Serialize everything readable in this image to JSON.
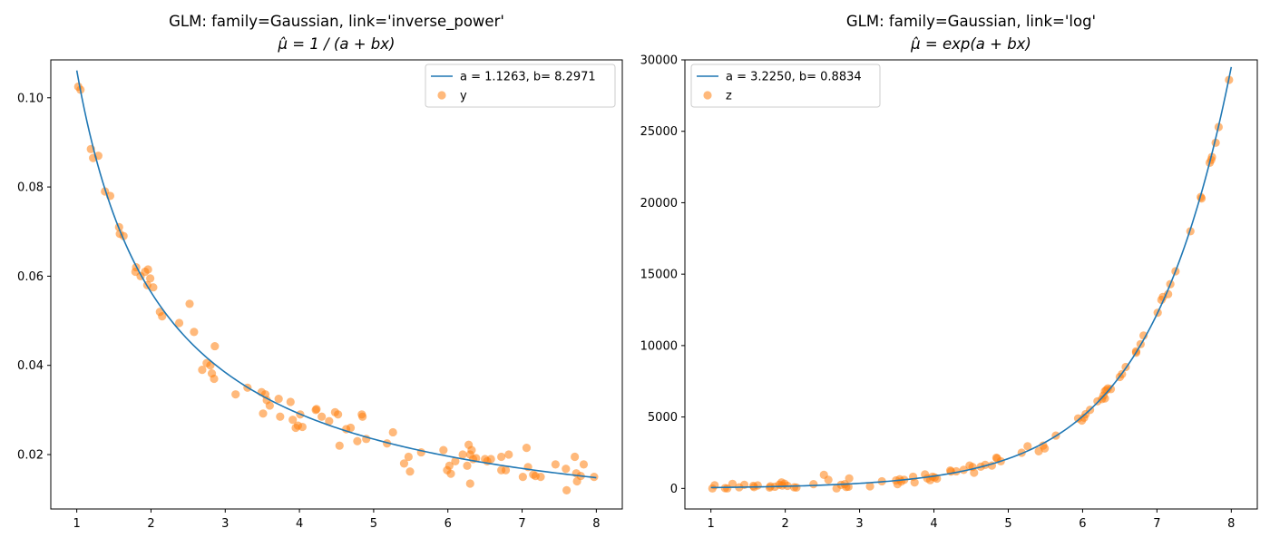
{
  "colors": {
    "fit_line": "#1f77b4",
    "points": "#ff7f0e"
  },
  "chart_data": [
    {
      "type": "scatter",
      "title": "GLM: family=Gaussian, link='inverse_power'",
      "subtitle": "μ̂ = 1 / (a + bx)",
      "xlabel": "",
      "ylabel": "",
      "xlim": [
        0.65,
        8.35
      ],
      "ylim": [
        0.0078,
        0.1085
      ],
      "xticks": [
        1,
        2,
        3,
        4,
        5,
        6,
        7,
        8
      ],
      "xtick_labels": [
        "1",
        "2",
        "3",
        "4",
        "5",
        "6",
        "7",
        "8"
      ],
      "yticks": [
        0.02,
        0.04,
        0.06,
        0.08,
        0.1
      ],
      "ytick_labels": [
        "0.02",
        "0.04",
        "0.06",
        "0.08",
        "0.10"
      ],
      "grid": false,
      "legend_position": "top-right",
      "series": [
        {
          "name": "a = 1.1263, b= 8.2971",
          "kind": "line",
          "function": "inverse_power",
          "a": 1.1263,
          "b": 8.2971,
          "x_range": [
            1,
            8
          ]
        },
        {
          "name": "y",
          "kind": "scatter",
          "points": [
            [
              1.02,
              0.1025
            ],
            [
              1.05,
              0.1018
            ],
            [
              1.19,
              0.0885
            ],
            [
              1.22,
              0.0865
            ],
            [
              1.29,
              0.087
            ],
            [
              1.38,
              0.079
            ],
            [
              1.45,
              0.078
            ],
            [
              1.57,
              0.071
            ],
            [
              1.58,
              0.0695
            ],
            [
              1.63,
              0.069
            ],
            [
              1.79,
              0.061
            ],
            [
              1.8,
              0.062
            ],
            [
              1.86,
              0.06
            ],
            [
              1.92,
              0.061
            ],
            [
              1.95,
              0.058
            ],
            [
              1.96,
              0.0615
            ],
            [
              1.99,
              0.0595
            ],
            [
              2.03,
              0.0575
            ],
            [
              2.12,
              0.052
            ],
            [
              2.15,
              0.051
            ],
            [
              2.38,
              0.0495
            ],
            [
              2.52,
              0.0538
            ],
            [
              2.58,
              0.0475
            ],
            [
              2.69,
              0.039
            ],
            [
              2.75,
              0.0405
            ],
            [
              2.8,
              0.04
            ],
            [
              2.82,
              0.0382
            ],
            [
              2.85,
              0.037
            ],
            [
              2.86,
              0.0443
            ],
            [
              3.14,
              0.0335
            ],
            [
              3.3,
              0.035
            ],
            [
              3.49,
              0.034
            ],
            [
              3.51,
              0.0292
            ],
            [
              3.54,
              0.0335
            ],
            [
              3.56,
              0.0322
            ],
            [
              3.6,
              0.031
            ],
            [
              3.72,
              0.0325
            ],
            [
              3.74,
              0.0285
            ],
            [
              3.88,
              0.0318
            ],
            [
              3.91,
              0.0278
            ],
            [
              3.95,
              0.026
            ],
            [
              3.98,
              0.0265
            ],
            [
              4.01,
              0.029
            ],
            [
              4.04,
              0.0262
            ],
            [
              4.22,
              0.03
            ],
            [
              4.23,
              0.0302
            ],
            [
              4.3,
              0.0285
            ],
            [
              4.4,
              0.0275
            ],
            [
              4.48,
              0.0295
            ],
            [
              4.52,
              0.029
            ],
            [
              4.54,
              0.022
            ],
            [
              4.63,
              0.0257
            ],
            [
              4.69,
              0.026
            ],
            [
              4.78,
              0.023
            ],
            [
              4.84,
              0.029
            ],
            [
              4.85,
              0.0285
            ],
            [
              4.9,
              0.0235
            ],
            [
              5.18,
              0.0225
            ],
            [
              5.26,
              0.025
            ],
            [
              5.41,
              0.018
            ],
            [
              5.47,
              0.0195
            ],
            [
              5.49,
              0.0162
            ],
            [
              5.64,
              0.0205
            ],
            [
              5.94,
              0.021
            ],
            [
              5.99,
              0.0165
            ],
            [
              6.02,
              0.0175
            ],
            [
              6.04,
              0.0157
            ],
            [
              6.1,
              0.0185
            ],
            [
              6.2,
              0.02
            ],
            [
              6.26,
              0.0175
            ],
            [
              6.28,
              0.0222
            ],
            [
              6.3,
              0.02
            ],
            [
              6.32,
              0.021
            ],
            [
              6.34,
              0.019
            ],
            [
              6.3,
              0.0135
            ],
            [
              6.38,
              0.0192
            ],
            [
              6.5,
              0.019
            ],
            [
              6.53,
              0.0185
            ],
            [
              6.58,
              0.019
            ],
            [
              6.72,
              0.0195
            ],
            [
              6.72,
              0.0165
            ],
            [
              6.78,
              0.0165
            ],
            [
              6.82,
              0.02
            ],
            [
              7.01,
              0.015
            ],
            [
              7.06,
              0.0215
            ],
            [
              7.08,
              0.0172
            ],
            [
              7.15,
              0.0155
            ],
            [
              7.18,
              0.0152
            ],
            [
              7.25,
              0.015
            ],
            [
              7.45,
              0.0178
            ],
            [
              7.59,
              0.0168
            ],
            [
              7.6,
              0.012
            ],
            [
              7.71,
              0.0195
            ],
            [
              7.74,
              0.014
            ],
            [
              7.73,
              0.0158
            ],
            [
              7.79,
              0.0152
            ],
            [
              7.83,
              0.0178
            ],
            [
              7.97,
              0.015
            ]
          ]
        }
      ]
    },
    {
      "type": "scatter",
      "title": "GLM: family=Gaussian, link='log'",
      "subtitle": "μ̂ = exp(a + bx)",
      "xlabel": "",
      "ylabel": "",
      "xlim": [
        0.65,
        8.35
      ],
      "ylim": [
        -1440,
        30000
      ],
      "xticks": [
        1,
        2,
        3,
        4,
        5,
        6,
        7,
        8
      ],
      "xtick_labels": [
        "1",
        "2",
        "3",
        "4",
        "5",
        "6",
        "7",
        "8"
      ],
      "yticks": [
        0,
        5000,
        10000,
        15000,
        20000,
        25000,
        30000
      ],
      "ytick_labels": [
        "0",
        "5000",
        "10000",
        "15000",
        "20000",
        "25000",
        "30000"
      ],
      "grid": false,
      "legend_position": "top-left",
      "series": [
        {
          "name": "a = 3.2250, b= 0.8834",
          "kind": "line",
          "function": "exp",
          "a": 3.225,
          "b": 0.8834,
          "x_range": [
            1,
            8
          ]
        },
        {
          "name": "z",
          "kind": "scatter",
          "points": [
            [
              1.02,
              0
            ],
            [
              1.05,
              220
            ],
            [
              1.19,
              20
            ],
            [
              1.22,
              0
            ],
            [
              1.29,
              320
            ],
            [
              1.38,
              80
            ],
            [
              1.45,
              250
            ],
            [
              1.57,
              180
            ],
            [
              1.58,
              90
            ],
            [
              1.63,
              210
            ],
            [
              1.79,
              60
            ],
            [
              1.8,
              150
            ],
            [
              1.86,
              120
            ],
            [
              1.92,
              260
            ],
            [
              1.95,
              420
            ],
            [
              1.96,
              200
            ],
            [
              1.99,
              330
            ],
            [
              2.03,
              180
            ],
            [
              2.12,
              80
            ],
            [
              2.15,
              60
            ],
            [
              2.38,
              300
            ],
            [
              2.52,
              950
            ],
            [
              2.58,
              600
            ],
            [
              2.69,
              0
            ],
            [
              2.75,
              250
            ],
            [
              2.8,
              300
            ],
            [
              2.82,
              100
            ],
            [
              2.85,
              120
            ],
            [
              2.86,
              700
            ],
            [
              3.14,
              150
            ],
            [
              3.3,
              500
            ],
            [
              3.49,
              560
            ],
            [
              3.51,
              300
            ],
            [
              3.54,
              640
            ],
            [
              3.56,
              480
            ],
            [
              3.6,
              600
            ],
            [
              3.72,
              820
            ],
            [
              3.74,
              420
            ],
            [
              3.88,
              980
            ],
            [
              3.91,
              700
            ],
            [
              3.95,
              580
            ],
            [
              3.98,
              820
            ],
            [
              4.01,
              770
            ],
            [
              4.04,
              690
            ],
            [
              4.22,
              1250
            ],
            [
              4.23,
              1180
            ],
            [
              4.3,
              1200
            ],
            [
              4.4,
              1300
            ],
            [
              4.48,
              1600
            ],
            [
              4.52,
              1500
            ],
            [
              4.54,
              1100
            ],
            [
              4.63,
              1520
            ],
            [
              4.69,
              1650
            ],
            [
              4.78,
              1600
            ],
            [
              4.84,
              2150
            ],
            [
              4.85,
              2100
            ],
            [
              4.9,
              1900
            ],
            [
              5.18,
              2500
            ],
            [
              5.26,
              2950
            ],
            [
              5.41,
              2600
            ],
            [
              5.47,
              3000
            ],
            [
              5.49,
              2800
            ],
            [
              5.64,
              3700
            ],
            [
              5.94,
              4900
            ],
            [
              5.99,
              4750
            ],
            [
              6.02,
              4950
            ],
            [
              6.04,
              5200
            ],
            [
              6.1,
              5500
            ],
            [
              6.2,
              6100
            ],
            [
              6.26,
              6250
            ],
            [
              6.28,
              6500
            ],
            [
              6.3,
              6800
            ],
            [
              6.32,
              6900
            ],
            [
              6.34,
              7000
            ],
            [
              6.3,
              6300
            ],
            [
              6.38,
              6950
            ],
            [
              6.5,
              7800
            ],
            [
              6.53,
              8000
            ],
            [
              6.58,
              8500
            ],
            [
              6.72,
              9500
            ],
            [
              6.72,
              9600
            ],
            [
              6.78,
              10100
            ],
            [
              6.82,
              10700
            ],
            [
              7.01,
              12300
            ],
            [
              7.06,
              13200
            ],
            [
              7.08,
              13400
            ],
            [
              7.15,
              13600
            ],
            [
              7.18,
              14300
            ],
            [
              7.25,
              15200
            ],
            [
              7.45,
              18000
            ],
            [
              7.59,
              20400
            ],
            [
              7.6,
              20300
            ],
            [
              7.71,
              22800
            ],
            [
              7.74,
              23200
            ],
            [
              7.73,
              23000
            ],
            [
              7.79,
              24200
            ],
            [
              7.83,
              25300
            ],
            [
              7.97,
              28600
            ]
          ]
        }
      ]
    }
  ]
}
